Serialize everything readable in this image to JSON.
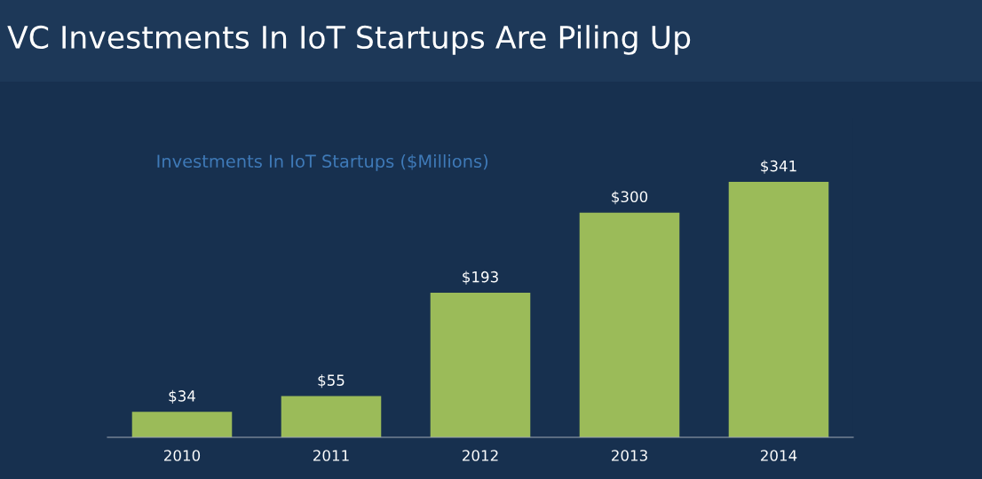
{
  "chart_data": {
    "type": "bar",
    "title": "VC Investments In IoT Startups Are Piling Up",
    "subtitle": "Investments In IoT Startups ($Millions)",
    "categories": [
      "2010",
      "2011",
      "2012",
      "2013",
      "2014"
    ],
    "values": [
      34,
      55,
      193,
      300,
      341
    ],
    "value_labels": [
      "$34",
      "$55",
      "$193",
      "$300",
      "$341"
    ],
    "color": "#9bbb59",
    "grid": false,
    "legend": false
  }
}
